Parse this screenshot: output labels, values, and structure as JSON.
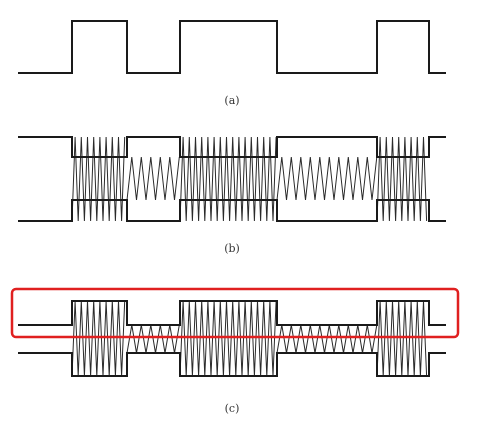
{
  "captions": {
    "a": "(a)",
    "b": "(b)",
    "c": "(c)"
  },
  "signal": {
    "levels": [
      0,
      1,
      0,
      1,
      0,
      1,
      0
    ],
    "breakpoints": [
      0,
      1,
      2,
      3,
      4,
      5,
      6,
      7
    ]
  },
  "modulation": {
    "high_level_density": "high",
    "low_level_density": "low"
  },
  "colors": {
    "ink": "#1a1a1a",
    "highlight": "#e02020",
    "background": "#ffffff"
  }
}
